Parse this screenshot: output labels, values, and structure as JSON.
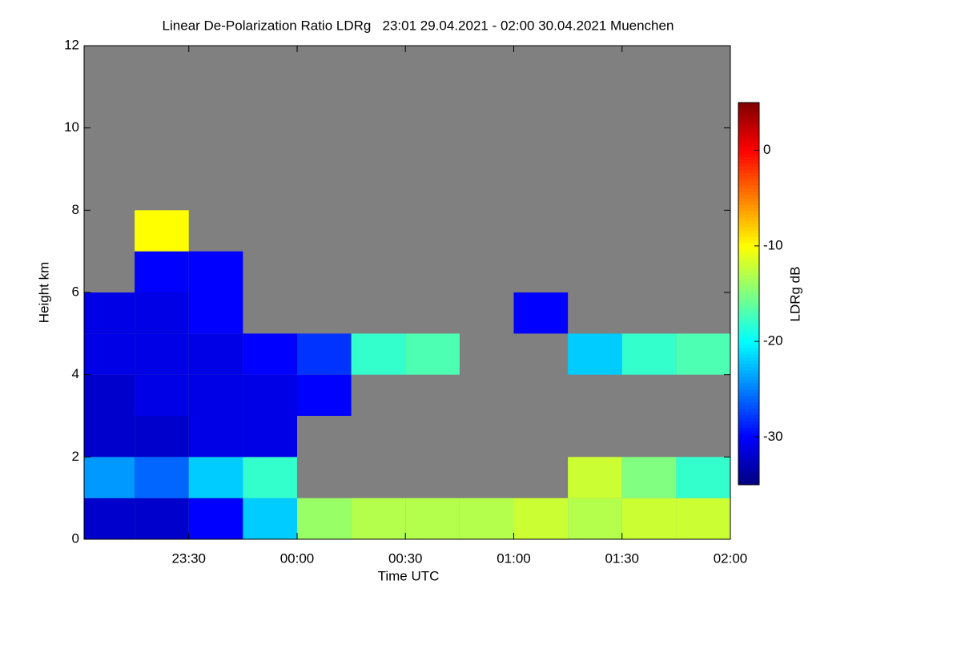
{
  "chart_data": {
    "type": "heatmap",
    "title": "Linear De-Polarization Ratio LDRg   23:01 29.04.2021 - 02:00 30.04.2021 Muenchen",
    "x_label": "Time UTC",
    "y_label": "Height km",
    "colorbar_label": "LDRg dB",
    "xlim": [
      -59,
      120
    ],
    "xticks": [
      {
        "value": -30,
        "label": "23:30"
      },
      {
        "value": 0,
        "label": "00:00"
      },
      {
        "value": 30,
        "label": "00:30"
      },
      {
        "value": 60,
        "label": "01:00"
      },
      {
        "value": 90,
        "label": "01:30"
      },
      {
        "value": 120,
        "label": "02:00"
      }
    ],
    "ylim": [
      0,
      12
    ],
    "yticks": [
      0,
      2,
      4,
      6,
      8,
      10,
      12
    ],
    "clim": [
      -35,
      5
    ],
    "cticks": [
      0,
      -10,
      -20,
      -30
    ],
    "colormap": "jet",
    "nan_color": "#808080",
    "x_bins": [
      -59,
      -45,
      -30,
      -15,
      0,
      15,
      30,
      45,
      60,
      75,
      90,
      105,
      120
    ],
    "y_bins": [
      0,
      1,
      2,
      3,
      4,
      5,
      6,
      7,
      8,
      9,
      10,
      11,
      12
    ],
    "z": [
      [
        -32,
        -32,
        -30,
        -22,
        -14,
        -13,
        -13,
        -13,
        -12,
        -13,
        -12,
        -12
      ],
      [
        -24,
        -26,
        -22,
        -18,
        null,
        null,
        null,
        null,
        null,
        -12,
        -15,
        -18
      ],
      [
        -32,
        -32,
        -31,
        -31,
        null,
        null,
        null,
        null,
        null,
        null,
        null,
        null
      ],
      [
        -32,
        -31,
        -31,
        -31,
        -30,
        null,
        null,
        null,
        null,
        null,
        null,
        null
      ],
      [
        -31,
        -31,
        -31,
        -30,
        -28,
        -18,
        -17,
        null,
        null,
        -22,
        -18,
        -17
      ],
      [
        -31,
        -31,
        -30,
        null,
        null,
        null,
        null,
        null,
        -30,
        null,
        null,
        null
      ],
      [
        null,
        -30,
        -30,
        null,
        null,
        null,
        null,
        null,
        null,
        null,
        null,
        null
      ],
      [
        null,
        -10,
        null,
        null,
        null,
        null,
        null,
        null,
        null,
        null,
        null,
        null
      ],
      [
        null,
        null,
        null,
        null,
        null,
        null,
        null,
        null,
        null,
        null,
        null,
        null
      ],
      [
        null,
        null,
        null,
        null,
        null,
        null,
        null,
        null,
        null,
        null,
        null,
        null
      ],
      [
        null,
        null,
        null,
        null,
        null,
        null,
        null,
        null,
        null,
        null,
        null,
        null
      ],
      [
        null,
        null,
        null,
        null,
        null,
        null,
        null,
        null,
        null,
        null,
        null,
        null
      ]
    ]
  }
}
